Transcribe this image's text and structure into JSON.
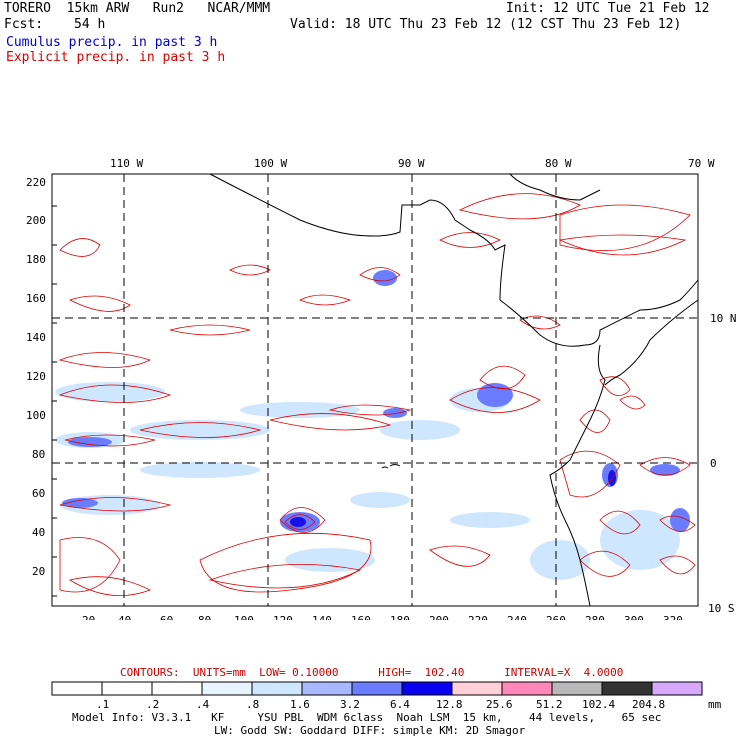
{
  "header": {
    "model": "TORERO  15km ARW   Run2   NCAR/MMM",
    "fcst_label": "Fcst:",
    "fcst_value": "54 h",
    "init": "Init: 12 UTC Tue 21 Feb 12",
    "valid": "Valid: 18 UTC Thu 23 Feb 12 (12 CST Thu 23 Feb 12)",
    "cumulus": "Cumulus precip. in past 3 h",
    "explicit": "Explicit precip. in past 3 h"
  },
  "map": {
    "lon_labels": [
      "110 W",
      "100 W",
      "90 W",
      "80 W",
      "70 W"
    ],
    "lat_labels_right": [
      "10 N",
      "0",
      "10 S"
    ],
    "y_ticks": [
      "220",
      "200",
      "180",
      "160",
      "140",
      "120",
      "100",
      "80",
      "60",
      "40",
      "20"
    ],
    "x_ticks": [
      "20",
      "40",
      "60",
      "80",
      "100",
      "120",
      "140",
      "160",
      "180",
      "200",
      "220",
      "240",
      "260",
      "280",
      "300",
      "320"
    ],
    "colors": {
      "contour": "#dd0000",
      "coast": "#000000",
      "grid": "#000000",
      "light_blue": "#cfe6ff",
      "mid_blue": "#8fa8ff",
      "dark_blue": "#3333ff"
    }
  },
  "contours_line": "CONTOURS:  UNITS=mm  LOW= 0.10000      HIGH=  102.40      INTERVAL=X  4.0000",
  "colorbar": {
    "labels": [
      ".1",
      ".2",
      ".4",
      ".8",
      "1.6",
      "3.2",
      "6.4",
      "12.8",
      "25.6",
      "51.2",
      "102.4",
      "204.8"
    ],
    "unit": "mm",
    "colors": [
      "#ffffff",
      "#ffffff",
      "#ffffff",
      "#e8f4ff",
      "#cfe6ff",
      "#a8b8ff",
      "#6a7cff",
      "#0a00f0",
      "#ffd0d8",
      "#ff88b8",
      "#b8b8b8",
      "#333333",
      "#d8a8ff"
    ]
  },
  "footer": {
    "line1": "Model Info: V3.3.1   KF     YSU PBL  WDM 6class  Noah LSM  15 km,    44 levels,    65 sec",
    "line2": "LW: Godd SW: Goddard DIFF: simple KM: 2D Smagor"
  }
}
